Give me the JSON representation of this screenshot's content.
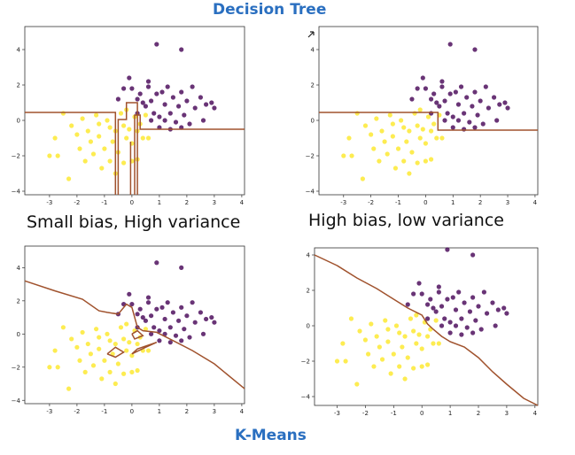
{
  "header": {
    "title": "Decision Tree"
  },
  "footer": {
    "title": "K-Means"
  },
  "captions": {
    "left": "Small bias, High variance",
    "right": "High bias, low variance"
  },
  "colors": {
    "class0": "#fde725",
    "class1": "#440154",
    "boundary": "#a0522d"
  },
  "chart_data": [
    {
      "type": "scatter",
      "id": "dt-left",
      "title": "",
      "xlim": [
        -3.9,
        4.1
      ],
      "ylim": [
        -4.2,
        5.3
      ],
      "xticks": [
        -3,
        -2,
        -1,
        0,
        1,
        2,
        3,
        4
      ],
      "yticks": [
        -4,
        -2,
        0,
        2,
        4
      ],
      "series": [
        {
          "name": "class 0 (yellow)",
          "points": [
            [
              -2.5,
              0.4
            ],
            [
              -2.2,
              -0.3
            ],
            [
              -1.8,
              0.1
            ],
            [
              -1.6,
              -0.6
            ],
            [
              -1.5,
              -1.2
            ],
            [
              -1.3,
              0.3
            ],
            [
              -1.2,
              -0.9
            ],
            [
              -1.0,
              -1.6
            ],
            [
              -0.9,
              0.0
            ],
            [
              -0.8,
              -0.4
            ],
            [
              -0.7,
              -1.2
            ],
            [
              -0.6,
              -0.6
            ],
            [
              -0.5,
              -1.8
            ],
            [
              -0.4,
              0.4
            ],
            [
              -0.3,
              -0.3
            ],
            [
              -0.2,
              -1.0
            ],
            [
              -0.1,
              -0.5
            ],
            [
              0.0,
              -1.3
            ],
            [
              0.1,
              0.2
            ],
            [
              0.2,
              -0.6
            ],
            [
              0.3,
              -0.2
            ],
            [
              -2.8,
              -1.0
            ],
            [
              -2.7,
              -2.0
            ],
            [
              -2.3,
              -3.3
            ],
            [
              -1.9,
              -1.6
            ],
            [
              -1.7,
              -2.3
            ],
            [
              -1.4,
              -1.9
            ],
            [
              -1.1,
              -2.7
            ],
            [
              -0.8,
              -2.3
            ],
            [
              -0.6,
              -3.0
            ],
            [
              -0.3,
              -2.4
            ],
            [
              0.0,
              -2.3
            ],
            [
              0.2,
              -2.2
            ],
            [
              0.4,
              -1.0
            ],
            [
              0.6,
              -1.0
            ],
            [
              -3.0,
              -2.0
            ],
            [
              -2.0,
              -0.8
            ],
            [
              -1.2,
              -0.2
            ],
            [
              -0.2,
              0.6
            ],
            [
              0.5,
              0.3
            ]
          ]
        },
        {
          "name": "class 1 (purple)",
          "points": [
            [
              0.9,
              4.3
            ],
            [
              1.8,
              4.0
            ],
            [
              -0.5,
              1.2
            ],
            [
              -0.3,
              1.8
            ],
            [
              -0.1,
              2.4
            ],
            [
              0.3,
              1.5
            ],
            [
              0.5,
              0.8
            ],
            [
              0.6,
              1.9
            ],
            [
              0.7,
              1.1
            ],
            [
              0.9,
              1.5
            ],
            [
              1.0,
              0.2
            ],
            [
              1.1,
              1.6
            ],
            [
              1.2,
              0.9
            ],
            [
              1.3,
              1.9
            ],
            [
              1.4,
              0.4
            ],
            [
              1.5,
              1.3
            ],
            [
              1.6,
              -0.1
            ],
            [
              1.7,
              0.8
            ],
            [
              1.8,
              1.6
            ],
            [
              1.9,
              0.3
            ],
            [
              2.0,
              1.1
            ],
            [
              2.1,
              -0.2
            ],
            [
              2.2,
              1.9
            ],
            [
              2.3,
              0.7
            ],
            [
              2.5,
              1.3
            ],
            [
              2.6,
              0.0
            ],
            [
              2.7,
              0.9
            ],
            [
              2.9,
              1.0
            ],
            [
              3.0,
              0.7
            ],
            [
              1.0,
              -0.4
            ],
            [
              0.8,
              0.4
            ],
            [
              0.4,
              1.0
            ],
            [
              0.2,
              1.2
            ],
            [
              0.0,
              1.8
            ],
            [
              0.2,
              0.4
            ],
            [
              0.6,
              2.2
            ],
            [
              1.4,
              -0.5
            ],
            [
              1.8,
              -0.4
            ],
            [
              1.2,
              0.0
            ],
            [
              0.7,
              0.0
            ]
          ]
        }
      ]
    },
    {
      "type": "scatter",
      "id": "dt-right",
      "title": "",
      "xlim": [
        -3.9,
        4.1
      ],
      "ylim": [
        -4.2,
        5.3
      ],
      "xticks": [
        -3,
        -2,
        -1,
        0,
        1,
        2,
        3,
        4
      ],
      "yticks": [
        -4,
        -2,
        0,
        2,
        4
      ],
      "series_ref": "dt-left"
    },
    {
      "type": "scatter",
      "id": "km-left",
      "title": "",
      "xlim": [
        -3.9,
        4.1
      ],
      "ylim": [
        -4.2,
        5.3
      ],
      "xticks": [
        -3,
        -2,
        -1,
        0,
        1,
        2,
        3,
        4
      ],
      "yticks": [
        -4,
        -2,
        0,
        2,
        4
      ],
      "series_ref": "dt-left"
    },
    {
      "type": "scatter",
      "id": "km-right",
      "title": "",
      "xlim": [
        -3.8,
        4.1
      ],
      "ylim": [
        -4.5,
        4.4
      ],
      "xticks": [
        -3,
        -2,
        -1,
        0,
        1,
        2,
        3,
        4
      ],
      "yticks": [
        -4,
        -2,
        0,
        2,
        4
      ],
      "series_ref": "dt-left"
    }
  ]
}
